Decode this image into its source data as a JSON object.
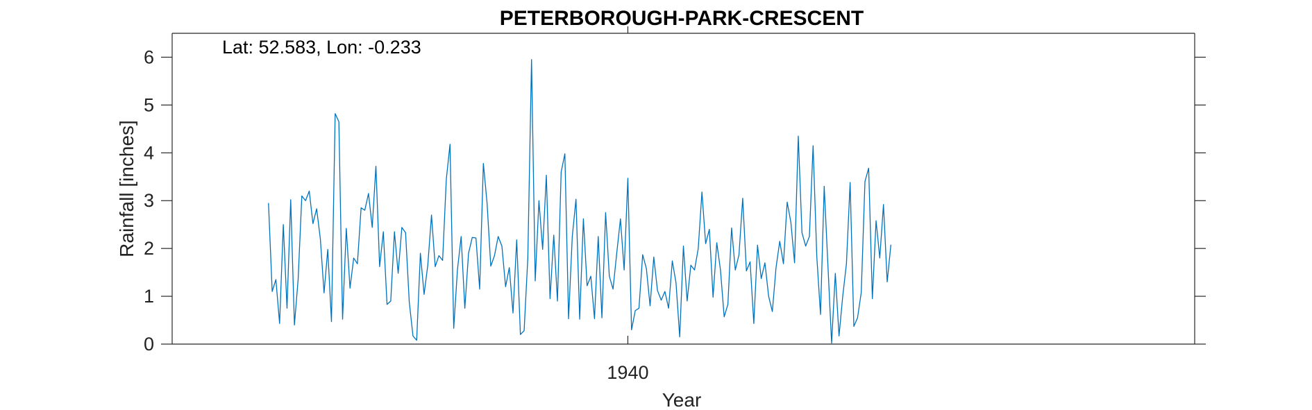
{
  "chart_data": {
    "type": "line",
    "title": "PETERBOROUGH-PARK-CRESCENT",
    "annotation": "Lat: 52.583, Lon: -0.233",
    "xlabel": "Year",
    "ylabel": "Rainfall [inches]",
    "ylim": [
      0,
      6.5
    ],
    "yticks": [
      0,
      1,
      2,
      3,
      4,
      5,
      6
    ],
    "xlim": [
      1929.75,
      1952.75
    ],
    "xticks": [
      1940
    ],
    "xtick_labels": [
      "1940"
    ],
    "grid": false,
    "line_color": "#0072BD",
    "series": [
      {
        "x_start": 1931.9167,
        "x_step": 0.083333,
        "values": [
          2.95,
          1.1,
          1.35,
          0.43,
          2.5,
          0.75,
          3.02,
          0.4,
          1.35,
          3.1,
          3.0,
          3.2,
          2.52,
          2.83,
          2.2,
          1.07,
          1.98,
          0.47,
          4.82,
          4.65,
          0.52,
          2.42,
          1.17,
          1.8,
          1.68,
          2.85,
          2.8,
          3.15,
          2.44,
          3.72,
          1.62,
          2.35,
          0.83,
          0.9,
          2.35,
          1.48,
          2.44,
          2.33,
          0.88,
          0.17,
          0.08,
          1.9,
          1.04,
          1.65,
          2.7,
          1.62,
          1.85,
          1.75,
          3.45,
          4.18,
          0.33,
          1.55,
          2.25,
          0.75,
          1.9,
          2.23,
          2.22,
          1.15,
          3.78,
          2.95,
          1.63,
          1.85,
          2.25,
          2.05,
          1.2,
          1.6,
          0.65,
          2.18,
          0.2,
          0.28,
          1.8,
          5.95,
          1.32,
          3.0,
          1.98,
          3.53,
          0.95,
          2.28,
          0.9,
          3.6,
          3.98,
          0.53,
          2.25,
          3.03,
          0.52,
          2.62,
          1.22,
          1.42,
          0.53,
          2.25,
          0.55,
          2.75,
          1.42,
          1.15,
          1.9,
          2.62,
          1.55,
          3.47,
          0.3,
          0.7,
          0.75,
          1.87,
          1.58,
          0.8,
          1.82,
          1.12,
          0.92,
          1.1,
          0.75,
          1.74,
          1.28,
          0.15,
          2.05,
          0.9,
          1.65,
          1.55,
          2.0,
          3.18,
          2.1,
          2.4,
          0.98,
          2.12,
          1.55,
          0.57,
          0.83,
          2.43,
          1.55,
          1.87,
          3.05,
          1.53,
          1.72,
          0.43,
          2.07,
          1.37,
          1.7,
          1.0,
          0.68,
          1.6,
          2.15,
          1.68,
          2.97,
          2.55,
          1.7,
          4.35,
          2.33,
          2.05,
          2.25,
          4.15,
          1.83,
          0.62,
          3.3,
          1.65,
          0.02,
          1.48,
          0.17,
          1.0,
          1.68,
          3.38,
          0.37,
          0.55,
          1.08,
          3.4,
          3.68,
          0.95,
          2.58,
          1.8,
          2.92,
          1.3,
          2.08
        ]
      }
    ]
  }
}
